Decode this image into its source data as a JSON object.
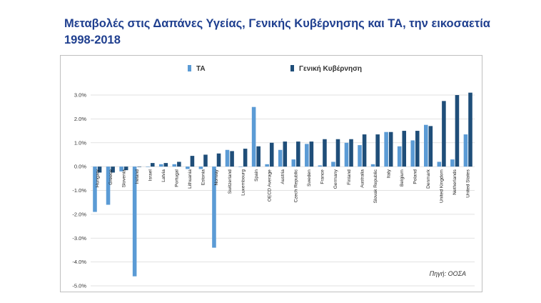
{
  "title": "Μεταβολές στις Δαπάνες Υγείας, Γενικής Κυβέρνησης και ΤΑ, την εικοσαετία 1998-2018",
  "source": "Πηγή: ΟΟΣΑ",
  "colors": {
    "series_ta": "#5b9bd5",
    "series_gov": "#1f4e79",
    "grid": "#d9d9d9",
    "title": "#1f3f8f"
  },
  "chart_data": {
    "type": "bar",
    "ylim": [
      -5.0,
      3.0
    ],
    "yticks": [
      "-5.0%",
      "-4.0%",
      "-3.0%",
      "-2.0%",
      "-1.0%",
      "0.0%",
      "1.0%",
      "2.0%",
      "3.0%"
    ],
    "ytick_values": [
      -5.0,
      -4.0,
      -3.0,
      -2.0,
      -1.0,
      0.0,
      1.0,
      2.0,
      3.0
    ],
    "grid": true,
    "legend": "top",
    "categories": [
      "Hungary",
      "Greece",
      "Slovenia",
      "Ireland",
      "Israel",
      "Latvia",
      "Portugal",
      "Lithuania",
      "Estonia",
      "Norway",
      "Switzerland",
      "Luxembourg",
      "Spain",
      "OECD Average",
      "Austria",
      "Czech Republic",
      "Sweden",
      "France",
      "Germany",
      "Finland",
      "Australia",
      "Slovak Republic",
      "Italy",
      "Belgium",
      "Poland",
      "Denmark",
      "United Kingdom",
      "Netherlands",
      "United States"
    ],
    "series": [
      {
        "name": "ΤΑ",
        "values": [
          -1.9,
          -1.6,
          -0.2,
          -4.6,
          0.0,
          0.1,
          0.1,
          -0.1,
          -0.1,
          -3.4,
          0.7,
          0.0,
          2.5,
          0.1,
          0.7,
          0.3,
          0.95,
          0.05,
          0.2,
          1.0,
          0.9,
          0.1,
          1.45,
          0.85,
          1.1,
          1.75,
          0.2,
          0.3,
          1.35
        ]
      },
      {
        "name": "Γενική Κυβέρνηση",
        "values": [
          -0.25,
          -0.25,
          -0.15,
          0.0,
          0.15,
          0.15,
          0.2,
          0.45,
          0.5,
          0.55,
          0.65,
          0.75,
          0.85,
          1.0,
          1.05,
          1.05,
          1.05,
          1.15,
          1.15,
          1.15,
          1.35,
          1.35,
          1.45,
          1.5,
          1.5,
          1.7,
          2.75,
          3.0,
          3.1
        ]
      }
    ]
  }
}
